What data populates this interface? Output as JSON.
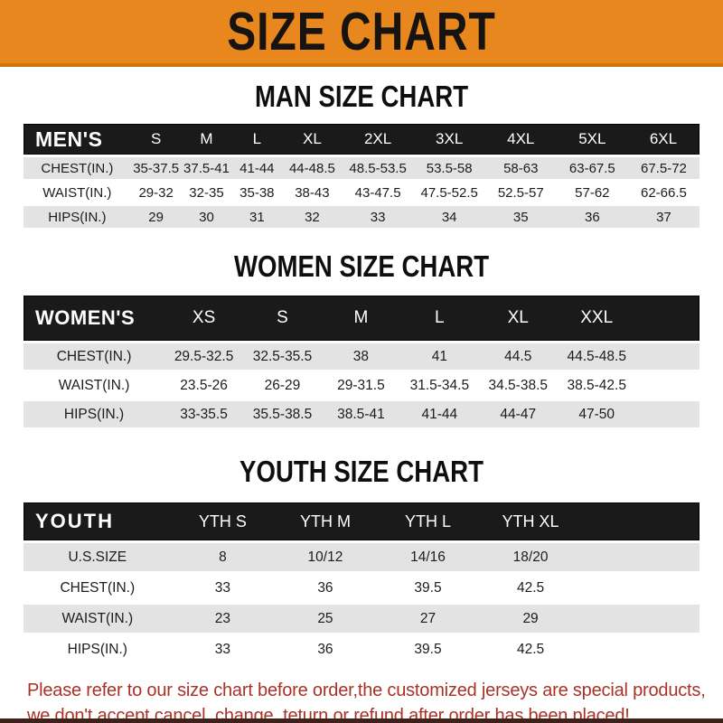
{
  "banner": {
    "title": "SIZE CHART"
  },
  "colors": {
    "banner_orange": "#E8871E",
    "banner_orange_edge": "#D0740F",
    "header_bar_black": "#1A1A1A",
    "row_stripe_gray": "#E3E3E3",
    "disclaimer_red": "#A93226",
    "bottom_strip": "#3F211C"
  },
  "sections": [
    {
      "title": "MAN SIZE CHART",
      "corner_label": "MEN'S",
      "columns": [
        "S",
        "M",
        "L",
        "XL",
        "2XL",
        "3XL",
        "4XL",
        "5XL",
        "6XL"
      ],
      "rows": [
        {
          "label": "CHEST(IN.)",
          "values": [
            "35-37.5",
            "37.5-41",
            "41-44",
            "44-48.5",
            "48.5-53.5",
            "53.5-58",
            "58-63",
            "63-67.5",
            "67.5-72"
          ]
        },
        {
          "label": "WAIST(IN.)",
          "values": [
            "29-32",
            "32-35",
            "35-38",
            "38-43",
            "43-47.5",
            "47.5-52.5",
            "52.5-57",
            "57-62",
            "62-66.5"
          ]
        },
        {
          "label": "HIPS(IN.)",
          "values": [
            "29",
            "30",
            "31",
            "32",
            "33",
            "34",
            "35",
            "36",
            "37"
          ]
        }
      ]
    },
    {
      "title": "WOMEN SIZE CHART",
      "corner_label": "WOMEN'S",
      "columns": [
        "XS",
        "S",
        "M",
        "L",
        "XL",
        "XXL"
      ],
      "rows": [
        {
          "label": "CHEST(IN.)",
          "values": [
            "29.5-32.5",
            "32.5-35.5",
            "38",
            "41",
            "44.5",
            "44.5-48.5"
          ]
        },
        {
          "label": "WAIST(IN.)",
          "values": [
            "23.5-26",
            "26-29",
            "29-31.5",
            "31.5-34.5",
            "34.5-38.5",
            "38.5-42.5"
          ]
        },
        {
          "label": "HIPS(IN.)",
          "values": [
            "33-35.5",
            "35.5-38.5",
            "38.5-41",
            "41-44",
            "44-47",
            "47-50"
          ]
        }
      ]
    },
    {
      "title": "YOUTH SIZE CHART",
      "corner_label": "YOUTH",
      "columns": [
        "YTH S",
        "YTH M",
        "YTH L",
        "YTH XL"
      ],
      "rows": [
        {
          "label": "U.S.SIZE",
          "values": [
            "8",
            "10/12",
            "14/16",
            "18/20"
          ]
        },
        {
          "label": "CHEST(IN.)",
          "values": [
            "33",
            "36",
            "39.5",
            "42.5"
          ]
        },
        {
          "label": "WAIST(IN.)",
          "values": [
            "23",
            "25",
            "27",
            "29"
          ]
        },
        {
          "label": "HIPS(IN.)",
          "values": [
            "33",
            "36",
            "39.5",
            "42.5"
          ]
        }
      ]
    }
  ],
  "disclaimer": {
    "line1": "Please refer to our size chart before order,the customized jerseys are special products,",
    "line2": "we don't accept cancel, change, teturn or refund after order has been placed!"
  }
}
